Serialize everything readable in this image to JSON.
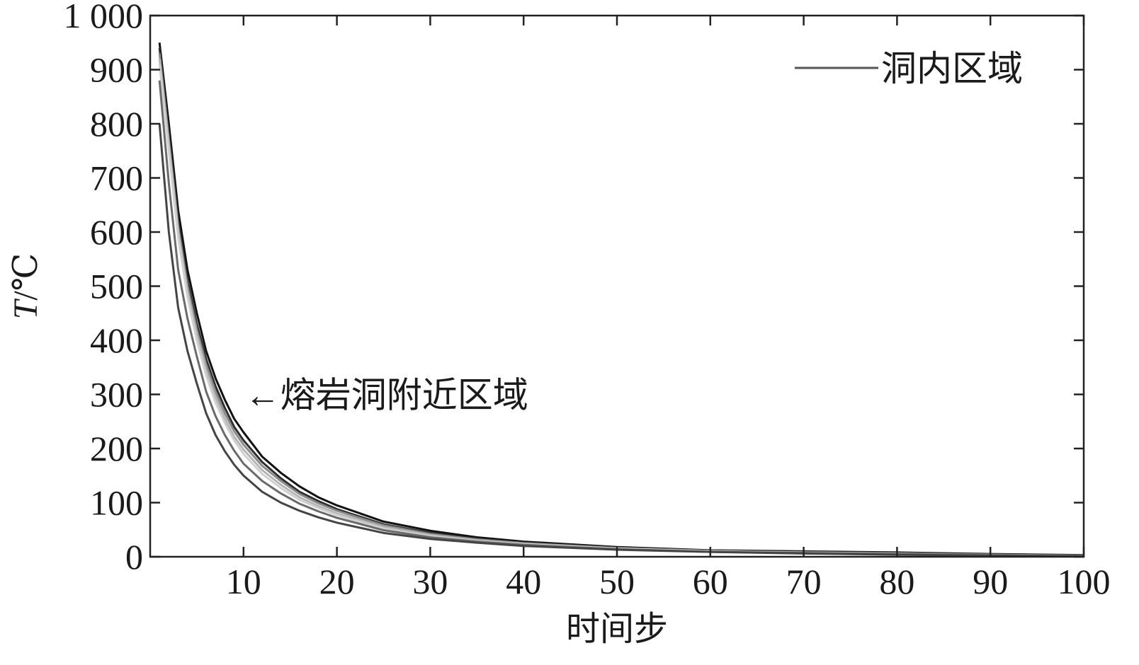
{
  "chart_data": {
    "type": "line",
    "xlabel": "时间步",
    "ylabel_var": "T",
    "ylabel_unit": "/℃",
    "xlim": [
      0,
      100
    ],
    "ylim": [
      0,
      1000
    ],
    "x_ticks": [
      10,
      20,
      30,
      40,
      50,
      60,
      70,
      80,
      90,
      100
    ],
    "x_tick_labels": [
      "10",
      "20",
      "30",
      "40",
      "50",
      "60",
      "70",
      "80",
      "90",
      "100"
    ],
    "y_ticks": [
      0,
      100,
      200,
      300,
      400,
      500,
      600,
      700,
      800,
      900,
      1000
    ],
    "y_tick_labels": [
      "0",
      "100",
      "200",
      "300",
      "400",
      "500",
      "600",
      "700",
      "800",
      "900",
      "1 000"
    ],
    "grid": false,
    "legend_position": "top-right",
    "legend": [
      {
        "label": "洞内区域",
        "color": "#555555"
      }
    ],
    "annotations": [
      {
        "text": "←熔岩洞附近区域",
        "x": 10,
        "y": 300
      }
    ],
    "series": [
      {
        "color": "#111111",
        "x": [
          1,
          2,
          3,
          4,
          5,
          6,
          7,
          8,
          9,
          10,
          12,
          14,
          16,
          18,
          20,
          25,
          30,
          35,
          40,
          50,
          60,
          70,
          80,
          90,
          100
        ],
        "values": [
          950,
          800,
          640,
          530,
          450,
          380,
          330,
          290,
          255,
          230,
          185,
          155,
          130,
          110,
          95,
          65,
          48,
          36,
          28,
          18,
          12,
          10,
          8,
          5,
          3
        ]
      },
      {
        "color": "#2e2e2e",
        "x": [
          1,
          2,
          3,
          4,
          5,
          6,
          7,
          8,
          9,
          10,
          12,
          14,
          16,
          18,
          20,
          25,
          30,
          35,
          40,
          50,
          60,
          70,
          80,
          90,
          100
        ],
        "values": [
          940,
          780,
          620,
          510,
          430,
          365,
          315,
          275,
          240,
          215,
          175,
          145,
          120,
          103,
          88,
          60,
          44,
          33,
          26,
          17,
          11,
          9,
          7,
          4,
          2
        ]
      },
      {
        "color": "#8a8a8a",
        "x": [
          1,
          2,
          3,
          4,
          5,
          6,
          7,
          8,
          9,
          10,
          12,
          14,
          16,
          18,
          20,
          25,
          30,
          35,
          40,
          50,
          60,
          70,
          80,
          90,
          100
        ],
        "values": [
          930,
          770,
          610,
          500,
          420,
          355,
          305,
          265,
          232,
          207,
          168,
          140,
          116,
          99,
          85,
          58,
          42,
          32,
          25,
          16,
          11,
          8,
          6,
          4,
          2
        ]
      },
      {
        "color": "#b5b5b5",
        "x": [
          1,
          2,
          3,
          4,
          5,
          6,
          7,
          8,
          9,
          10,
          12,
          14,
          16,
          18,
          20,
          25,
          30,
          35,
          40,
          50,
          60,
          70,
          80,
          90,
          100
        ],
        "values": [
          920,
          760,
          600,
          490,
          410,
          345,
          295,
          255,
          222,
          198,
          160,
          133,
          110,
          94,
          80,
          55,
          40,
          30,
          24,
          15,
          10,
          8,
          6,
          3,
          1
        ]
      },
      {
        "color": "#d0d0d0",
        "x": [
          1,
          2,
          3,
          4,
          5,
          6,
          7,
          8,
          9,
          10,
          12,
          14,
          16,
          18,
          20,
          25,
          30,
          35,
          40,
          50,
          60,
          70,
          80,
          90,
          100
        ],
        "values": [
          910,
          750,
          590,
          480,
          400,
          335,
          285,
          247,
          215,
          190,
          153,
          127,
          105,
          90,
          77,
          52,
          38,
          29,
          23,
          15,
          10,
          7,
          5,
          3,
          1
        ]
      },
      {
        "color": "#6a6a6a",
        "x": [
          1,
          2,
          3,
          4,
          5,
          6,
          7,
          8,
          9,
          10,
          12,
          14,
          16,
          18,
          20,
          25,
          30,
          35,
          40,
          50,
          60,
          70,
          80,
          90,
          100
        ],
        "values": [
          880,
          690,
          530,
          440,
          370,
          305,
          260,
          225,
          196,
          172,
          140,
          117,
          98,
          84,
          72,
          49,
          36,
          28,
          22,
          14,
          9,
          7,
          5,
          3,
          1
        ]
      },
      {
        "color": "#444444",
        "x": [
          1,
          2,
          3,
          4,
          5,
          6,
          7,
          8,
          9,
          10,
          12,
          14,
          16,
          18,
          20,
          25,
          30,
          35,
          40,
          50,
          60,
          70,
          80,
          90,
          100
        ],
        "values": [
          800,
          600,
          460,
          380,
          320,
          265,
          225,
          195,
          170,
          150,
          120,
          100,
          85,
          73,
          63,
          44,
          33,
          26,
          20,
          13,
          9,
          6,
          4,
          2,
          1
        ]
      }
    ]
  }
}
